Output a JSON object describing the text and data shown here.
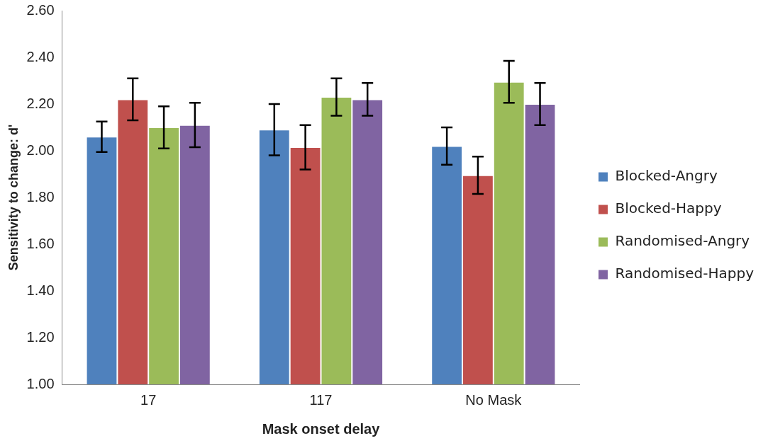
{
  "chart_data": {
    "type": "bar",
    "xlabel": "Mask onset delay",
    "ylabel": "Sensitivity to change: d'",
    "categories": [
      "17",
      "117",
      "No Mask"
    ],
    "series": [
      {
        "name": "Blocked-Angry",
        "color": "#4f81bd",
        "values": [
          2.06,
          2.09,
          2.02
        ],
        "errors": [
          0.065,
          0.11,
          0.08
        ]
      },
      {
        "name": "Blocked-Happy",
        "color": "#c0504d",
        "values": [
          2.22,
          2.015,
          1.895
        ],
        "errors": [
          0.09,
          0.095,
          0.08
        ]
      },
      {
        "name": "Randomised-Angry",
        "color": "#9bbb59",
        "values": [
          2.1,
          2.23,
          2.295
        ],
        "errors": [
          0.09,
          0.08,
          0.09
        ]
      },
      {
        "name": "Randomised-Happy",
        "color": "#8064a2",
        "values": [
          2.11,
          2.22,
          2.2
        ],
        "errors": [
          0.095,
          0.07,
          0.09
        ]
      }
    ],
    "ylim": [
      1.0,
      2.6
    ],
    "yticks": [
      {
        "value": 1.0,
        "label": "1.00"
      },
      {
        "value": 1.2,
        "label": "1.20"
      },
      {
        "value": 1.4,
        "label": "1.40"
      },
      {
        "value": 1.6,
        "label": "1.60"
      },
      {
        "value": 1.8,
        "label": "1.80"
      },
      {
        "value": 2.0,
        "label": "2.00"
      },
      {
        "value": 2.2,
        "label": "2.20"
      },
      {
        "value": 2.4,
        "label": "2.40"
      },
      {
        "value": 2.6,
        "label": "2.60"
      }
    ],
    "grid": false,
    "legend": "right"
  }
}
